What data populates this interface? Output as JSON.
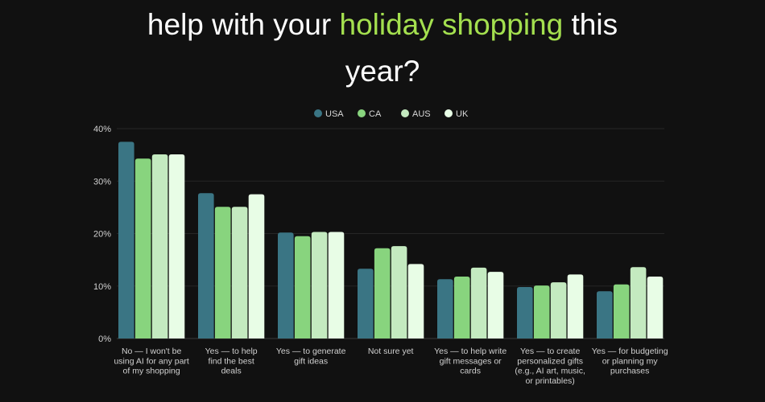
{
  "title": {
    "part1": "help with your ",
    "highlight": "holiday shopping",
    "part2": " this",
    "line2": "year?",
    "highlight_color": "#a4e04f"
  },
  "chart_data": {
    "type": "bar",
    "title": "help with your holiday shopping this year?",
    "xlabel": "",
    "ylabel": "",
    "ylim": [
      0,
      40
    ],
    "yticks": [
      0,
      10,
      20,
      30,
      40
    ],
    "ytick_labels": [
      "0%",
      "10%",
      "20%",
      "30%",
      "40%"
    ],
    "grid": true,
    "legend_position": "top-center",
    "categories": [
      [
        "No — I won't be",
        "using AI for any part",
        "of my shopping"
      ],
      [
        "Yes — to help",
        "find the best",
        "deals"
      ],
      [
        "Yes — to generate",
        "gift ideas"
      ],
      [
        "Not sure yet"
      ],
      [
        "Yes — to help write",
        "gift messages or",
        "cards"
      ],
      [
        "Yes — to create",
        "personalized gifts",
        "(e.g., AI art, music,",
        "or printables)"
      ],
      [
        "Yes — for budgeting",
        "or planning my",
        "purchases"
      ]
    ],
    "series": [
      {
        "name": "USA",
        "color": "#3a7584",
        "values": [
          37.5,
          27.7,
          20.2,
          13.3,
          11.3,
          9.8,
          9.0
        ]
      },
      {
        "name": "CA",
        "color": "#88d47e",
        "values": [
          34.3,
          25.1,
          19.5,
          17.2,
          11.8,
          10.1,
          10.3
        ]
      },
      {
        "name": "AUS",
        "color": "#c4eac0",
        "values": [
          35.1,
          25.1,
          20.3,
          17.6,
          13.5,
          10.7,
          13.6
        ]
      },
      {
        "name": "UK",
        "color": "#e8fde6",
        "values": [
          35.1,
          27.5,
          20.3,
          14.2,
          12.7,
          12.2,
          11.8
        ]
      }
    ]
  }
}
